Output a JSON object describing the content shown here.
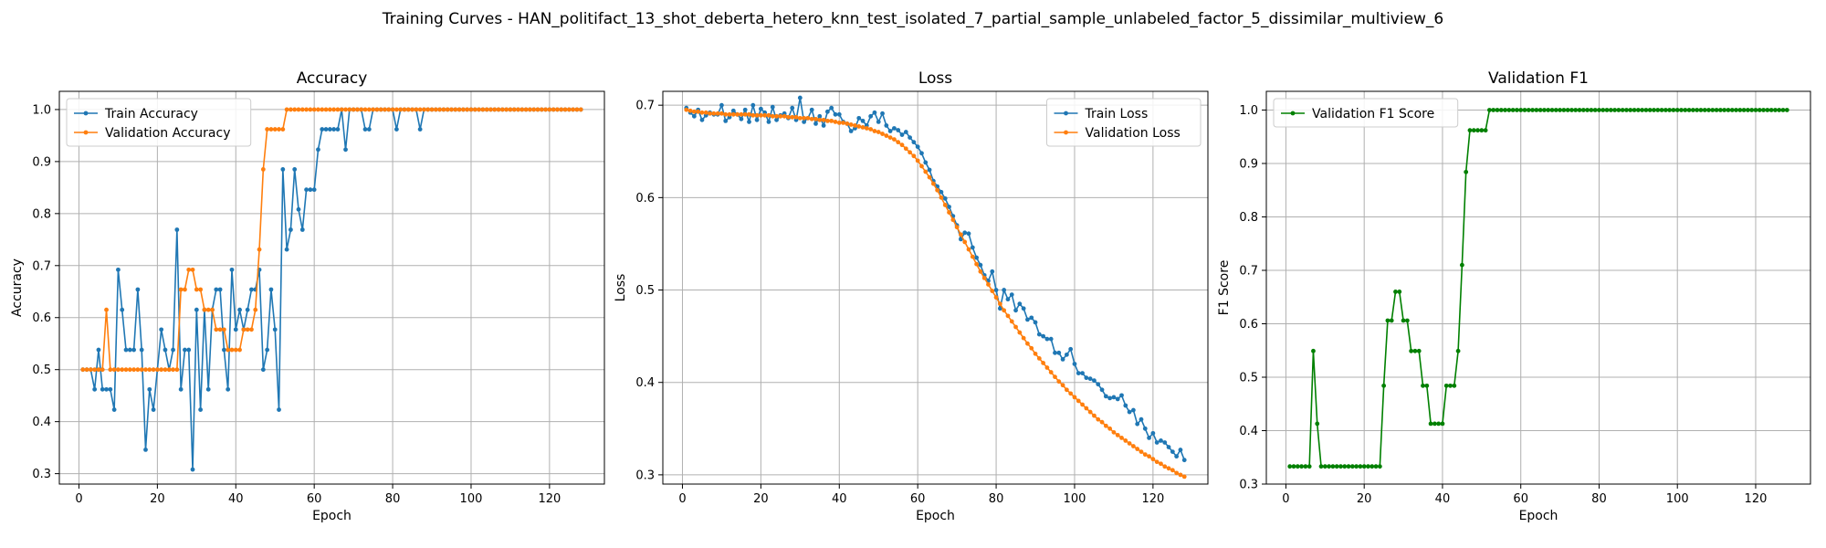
{
  "figure_title": "Training Curves - HAN_politifact_13_shot_deberta_hetero_knn_test_isolated_7_partial_sample_unlabeled_factor_5_dissimilar_multiview_6",
  "colors": {
    "train": "#1f77b4",
    "validation": "#ff7f0e",
    "f1": "#008000"
  },
  "chart_data": [
    {
      "type": "line",
      "title": "Accuracy",
      "xlabel": "Epoch",
      "ylabel": "Accuracy",
      "xlim": [
        -5,
        134
      ],
      "ylim": [
        0.28,
        1.035
      ],
      "xticks": [
        0,
        20,
        40,
        60,
        80,
        100,
        120
      ],
      "yticks": [
        0.3,
        0.4,
        0.5,
        0.6,
        0.7,
        0.8,
        0.9,
        1.0
      ],
      "ytick_labels": [
        "0.3",
        "0.4",
        "0.5",
        "0.6",
        "0.7",
        "0.8",
        "0.9",
        "1.0"
      ],
      "grid": true,
      "legend_position": "upper-left",
      "series": [
        {
          "name": "Train Accuracy",
          "color": "#1f77b4",
          "values": [
            0.5,
            0.5,
            0.5,
            0.462,
            0.538,
            0.462,
            0.462,
            0.462,
            0.423,
            0.692,
            0.615,
            0.538,
            0.538,
            0.538,
            0.654,
            0.538,
            0.346,
            0.462,
            0.423,
            0.5,
            0.577,
            0.538,
            0.5,
            0.538,
            0.769,
            0.462,
            0.538,
            0.538,
            0.308,
            0.615,
            0.423,
            0.615,
            0.462,
            0.615,
            0.654,
            0.654,
            0.538,
            0.462,
            0.692,
            0.577,
            0.615,
            0.577,
            0.615,
            0.654,
            0.654,
            0.692,
            0.5,
            0.538,
            0.654,
            0.577,
            0.423,
            0.885,
            0.731,
            0.769,
            0.885,
            0.808,
            0.769,
            0.846,
            0.846,
            0.846,
            0.923,
            0.962,
            0.962,
            0.962,
            0.962,
            0.962,
            1.0,
            0.923,
            1.0,
            1.0,
            1.0,
            1.0,
            0.962,
            0.962,
            1.0,
            1.0,
            1.0,
            1.0,
            1.0,
            1.0,
            0.962,
            1.0,
            1.0,
            1.0,
            1.0,
            1.0,
            0.962,
            1.0,
            1.0,
            1.0,
            1.0,
            1.0,
            1.0,
            1.0,
            1.0,
            1.0,
            1.0,
            1.0,
            1.0,
            1.0,
            1.0,
            1.0,
            1.0,
            1.0,
            1.0,
            1.0,
            1.0,
            1.0,
            1.0,
            1.0,
            1.0,
            1.0,
            1.0,
            1.0,
            1.0,
            1.0,
            1.0,
            1.0,
            1.0,
            1.0,
            1.0,
            1.0,
            1.0,
            1.0,
            1.0,
            1.0,
            1.0,
            1.0
          ]
        },
        {
          "name": "Validation Accuracy",
          "color": "#ff7f0e",
          "values": [
            0.5,
            0.5,
            0.5,
            0.5,
            0.5,
            0.5,
            0.615,
            0.5,
            0.5,
            0.5,
            0.5,
            0.5,
            0.5,
            0.5,
            0.5,
            0.5,
            0.5,
            0.5,
            0.5,
            0.5,
            0.5,
            0.5,
            0.5,
            0.5,
            0.5,
            0.654,
            0.654,
            0.692,
            0.692,
            0.654,
            0.654,
            0.615,
            0.615,
            0.615,
            0.577,
            0.577,
            0.577,
            0.538,
            0.538,
            0.538,
            0.538,
            0.577,
            0.577,
            0.577,
            0.615,
            0.731,
            0.885,
            0.962,
            0.962,
            0.962,
            0.962,
            0.962,
            1.0,
            1.0,
            1.0,
            1.0,
            1.0,
            1.0,
            1.0,
            1.0,
            1.0,
            1.0,
            1.0,
            1.0,
            1.0,
            1.0,
            1.0,
            1.0,
            1.0,
            1.0,
            1.0,
            1.0,
            1.0,
            1.0,
            1.0,
            1.0,
            1.0,
            1.0,
            1.0,
            1.0,
            1.0,
            1.0,
            1.0,
            1.0,
            1.0,
            1.0,
            1.0,
            1.0,
            1.0,
            1.0,
            1.0,
            1.0,
            1.0,
            1.0,
            1.0,
            1.0,
            1.0,
            1.0,
            1.0,
            1.0,
            1.0,
            1.0,
            1.0,
            1.0,
            1.0,
            1.0,
            1.0,
            1.0,
            1.0,
            1.0,
            1.0,
            1.0,
            1.0,
            1.0,
            1.0,
            1.0,
            1.0,
            1.0,
            1.0,
            1.0,
            1.0,
            1.0,
            1.0,
            1.0,
            1.0,
            1.0,
            1.0,
            1.0
          ]
        }
      ]
    },
    {
      "type": "line",
      "title": "Loss",
      "xlabel": "Epoch",
      "ylabel": "Loss",
      "xlim": [
        -5,
        134
      ],
      "ylim": [
        0.29,
        0.715
      ],
      "xticks": [
        0,
        20,
        40,
        60,
        80,
        100,
        120
      ],
      "yticks": [
        0.3,
        0.4,
        0.5,
        0.6,
        0.7
      ],
      "ytick_labels": [
        "0.3",
        "0.4",
        "0.5",
        "0.6",
        "0.7"
      ],
      "grid": true,
      "legend_position": "upper-right",
      "series": [
        {
          "name": "Train Loss",
          "color": "#1f77b4",
          "values": [
            0.697,
            0.692,
            0.688,
            0.695,
            0.684,
            0.689,
            0.692,
            0.69,
            0.69,
            0.7,
            0.683,
            0.687,
            0.694,
            0.69,
            0.685,
            0.695,
            0.682,
            0.7,
            0.684,
            0.696,
            0.692,
            0.682,
            0.698,
            0.684,
            0.689,
            0.691,
            0.686,
            0.697,
            0.684,
            0.708,
            0.682,
            0.686,
            0.695,
            0.68,
            0.688,
            0.678,
            0.693,
            0.697,
            0.69,
            0.69,
            0.682,
            0.68,
            0.672,
            0.675,
            0.686,
            0.683,
            0.678,
            0.688,
            0.692,
            0.682,
            0.691,
            0.678,
            0.672,
            0.675,
            0.673,
            0.668,
            0.671,
            0.665,
            0.66,
            0.655,
            0.648,
            0.638,
            0.63,
            0.618,
            0.612,
            0.606,
            0.599,
            0.59,
            0.58,
            0.57,
            0.555,
            0.562,
            0.561,
            0.546,
            0.535,
            0.527,
            0.516,
            0.51,
            0.52,
            0.5,
            0.48,
            0.5,
            0.49,
            0.495,
            0.478,
            0.485,
            0.48,
            0.468,
            0.47,
            0.465,
            0.452,
            0.45,
            0.447,
            0.447,
            0.432,
            0.432,
            0.425,
            0.43,
            0.436,
            0.42,
            0.41,
            0.41,
            0.405,
            0.404,
            0.402,
            0.398,
            0.392,
            0.385,
            0.383,
            0.384,
            0.382,
            0.386,
            0.375,
            0.368,
            0.37,
            0.355,
            0.36,
            0.35,
            0.34,
            0.345,
            0.335,
            0.337,
            0.335,
            0.33,
            0.325,
            0.32,
            0.327,
            0.316
          ]
        },
        {
          "name": "Validation Loss",
          "color": "#ff7f0e",
          "values": [
            0.695,
            0.694,
            0.693,
            0.693,
            0.692,
            0.692,
            0.691,
            0.691,
            0.691,
            0.691,
            0.69,
            0.69,
            0.69,
            0.69,
            0.69,
            0.69,
            0.69,
            0.689,
            0.689,
            0.689,
            0.689,
            0.689,
            0.688,
            0.688,
            0.688,
            0.688,
            0.687,
            0.687,
            0.687,
            0.686,
            0.686,
            0.686,
            0.685,
            0.685,
            0.684,
            0.684,
            0.683,
            0.683,
            0.682,
            0.681,
            0.681,
            0.68,
            0.679,
            0.678,
            0.677,
            0.676,
            0.675,
            0.674,
            0.672,
            0.671,
            0.669,
            0.667,
            0.665,
            0.663,
            0.66,
            0.657,
            0.653,
            0.649,
            0.645,
            0.64,
            0.634,
            0.628,
            0.622,
            0.615,
            0.608,
            0.6,
            0.592,
            0.584,
            0.576,
            0.568,
            0.56,
            0.552,
            0.544,
            0.536,
            0.528,
            0.52,
            0.513,
            0.506,
            0.499,
            0.492,
            0.485,
            0.478,
            0.472,
            0.466,
            0.46,
            0.454,
            0.448,
            0.442,
            0.437,
            0.431,
            0.426,
            0.421,
            0.416,
            0.411,
            0.406,
            0.401,
            0.397,
            0.392,
            0.388,
            0.384,
            0.38,
            0.376,
            0.372,
            0.368,
            0.364,
            0.36,
            0.357,
            0.353,
            0.35,
            0.346,
            0.343,
            0.34,
            0.337,
            0.334,
            0.331,
            0.328,
            0.325,
            0.322,
            0.32,
            0.317,
            0.314,
            0.312,
            0.309,
            0.307,
            0.305,
            0.302,
            0.3,
            0.298
          ]
        }
      ]
    },
    {
      "type": "line",
      "title": "Validation F1",
      "xlabel": "Epoch",
      "ylabel": "F1 Score",
      "xlim": [
        -5,
        134
      ],
      "ylim": [
        0.3,
        1.035
      ],
      "xticks": [
        0,
        20,
        40,
        60,
        80,
        100,
        120
      ],
      "yticks": [
        0.3,
        0.4,
        0.5,
        0.6,
        0.7,
        0.8,
        0.9,
        1.0
      ],
      "ytick_labels": [
        "0.3",
        "0.4",
        "0.5",
        "0.6",
        "0.7",
        "0.8",
        "0.9",
        "1.0"
      ],
      "grid": true,
      "legend_position": "upper-left",
      "series": [
        {
          "name": "Validation F1 Score",
          "color": "#008000",
          "values": [
            0.333,
            0.333,
            0.333,
            0.333,
            0.333,
            0.333,
            0.549,
            0.413,
            0.333,
            0.333,
            0.333,
            0.333,
            0.333,
            0.333,
            0.333,
            0.333,
            0.333,
            0.333,
            0.333,
            0.333,
            0.333,
            0.333,
            0.333,
            0.333,
            0.484,
            0.606,
            0.606,
            0.66,
            0.66,
            0.606,
            0.606,
            0.549,
            0.549,
            0.549,
            0.484,
            0.484,
            0.413,
            0.413,
            0.413,
            0.413,
            0.484,
            0.484,
            0.484,
            0.549,
            0.71,
            0.884,
            0.962,
            0.962,
            0.962,
            0.962,
            0.962,
            1.0,
            1.0,
            1.0,
            1.0,
            1.0,
            1.0,
            1.0,
            1.0,
            1.0,
            1.0,
            1.0,
            1.0,
            1.0,
            1.0,
            1.0,
            1.0,
            1.0,
            1.0,
            1.0,
            1.0,
            1.0,
            1.0,
            1.0,
            1.0,
            1.0,
            1.0,
            1.0,
            1.0,
            1.0,
            1.0,
            1.0,
            1.0,
            1.0,
            1.0,
            1.0,
            1.0,
            1.0,
            1.0,
            1.0,
            1.0,
            1.0,
            1.0,
            1.0,
            1.0,
            1.0,
            1.0,
            1.0,
            1.0,
            1.0,
            1.0,
            1.0,
            1.0,
            1.0,
            1.0,
            1.0,
            1.0,
            1.0,
            1.0,
            1.0,
            1.0,
            1.0,
            1.0,
            1.0,
            1.0,
            1.0,
            1.0,
            1.0,
            1.0,
            1.0,
            1.0,
            1.0,
            1.0,
            1.0,
            1.0,
            1.0,
            1.0,
            1.0
          ]
        }
      ]
    }
  ]
}
